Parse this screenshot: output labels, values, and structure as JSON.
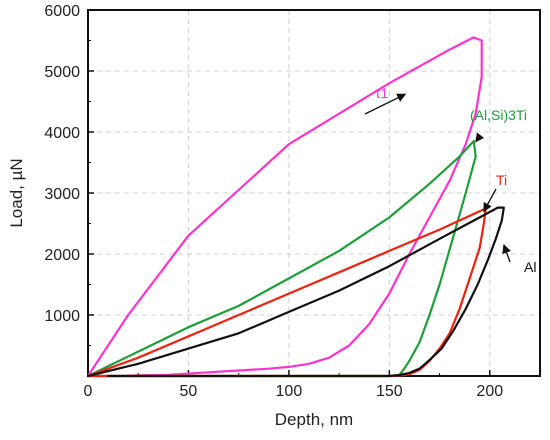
{
  "chart_data": {
    "type": "line",
    "title": "",
    "xlabel": "Depth, nm",
    "ylabel": "Load, µN",
    "xlim": [
      0,
      225
    ],
    "ylim": [
      0,
      6000
    ],
    "x_ticks": [
      0,
      50,
      100,
      150,
      200
    ],
    "y_ticks": [
      1000,
      2000,
      3000,
      4000,
      5000,
      6000
    ],
    "grid": true,
    "legend": "inline labels with arrows",
    "series": [
      {
        "name": "τ1",
        "color": "#ff33cc",
        "x": [
          0,
          20,
          50,
          100,
          150,
          180,
          192,
          196,
          196,
          193,
          188,
          180,
          170,
          160,
          150,
          140,
          130,
          120,
          110,
          100,
          90,
          80,
          60,
          40,
          25,
          15,
          0
        ],
        "y": [
          0,
          1000,
          2300,
          3800,
          4800,
          5350,
          5550,
          5500,
          4900,
          4300,
          3800,
          3200,
          2600,
          2000,
          1350,
          850,
          500,
          300,
          200,
          150,
          120,
          100,
          60,
          20,
          10,
          0,
          0
        ]
      },
      {
        "name": "(Al,Si)3Ti",
        "color": "#1e9e3a",
        "x": [
          0,
          25,
          50,
          75,
          100,
          125,
          150,
          170,
          185,
          192,
          193,
          188,
          182,
          175,
          170,
          165,
          160,
          157,
          155,
          150,
          120,
          100,
          60,
          30,
          10,
          0
        ],
        "y": [
          0,
          400,
          800,
          1150,
          1600,
          2050,
          2600,
          3150,
          3600,
          3850,
          3600,
          3000,
          2300,
          1500,
          1000,
          550,
          250,
          100,
          20,
          0,
          0,
          0,
          0,
          0,
          0,
          0
        ]
      },
      {
        "name": "Ti",
        "color": "#ee2211",
        "x": [
          0,
          25,
          50,
          75,
          100,
          125,
          150,
          175,
          195,
          198,
          197,
          195,
          190,
          185,
          180,
          175,
          170,
          165,
          160,
          155,
          150,
          120,
          80,
          30,
          0
        ],
        "y": [
          0,
          300,
          650,
          1000,
          1350,
          1700,
          2050,
          2400,
          2700,
          2750,
          2500,
          2100,
          1600,
          1100,
          700,
          450,
          250,
          100,
          30,
          5,
          0,
          0,
          0,
          0,
          0
        ]
      },
      {
        "name": "Al",
        "color": "#111111",
        "x": [
          0,
          25,
          50,
          75,
          100,
          125,
          150,
          175,
          195,
          204,
          207,
          206,
          203,
          199,
          194,
          188,
          182,
          176,
          170,
          165,
          160,
          155,
          150,
          145,
          140,
          130,
          100,
          60,
          30,
          15,
          10
        ],
        "y": [
          0,
          200,
          450,
          700,
          1050,
          1400,
          1800,
          2250,
          2600,
          2760,
          2760,
          2550,
          2250,
          1900,
          1500,
          1100,
          750,
          450,
          260,
          120,
          50,
          15,
          0,
          0,
          0,
          0,
          0,
          0,
          0,
          0,
          0
        ]
      }
    ],
    "annotations": [
      {
        "text": "τ1",
        "series": "τ1",
        "arrow_to": [
          158,
          4620
        ]
      },
      {
        "text": "(Al,Si)3Ti",
        "series": "(Al,Si)3Ti",
        "arrow_to": [
          193,
          3840
        ]
      },
      {
        "text": "Ti",
        "series": "Ti",
        "arrow_to": [
          197,
          2700
        ]
      },
      {
        "text": "Al",
        "series": "Al",
        "arrow_to": [
          207,
          2150
        ]
      }
    ]
  }
}
